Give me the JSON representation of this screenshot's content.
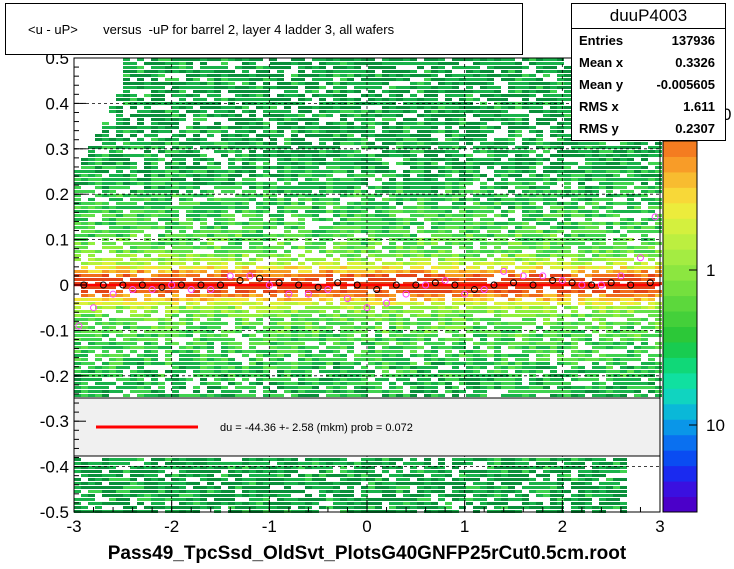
{
  "title": "<u - uP>       versus  -uP for barrel 2, layer 4 ladder 3, all wafers",
  "stats": {
    "name": "duuP4003",
    "rows": [
      {
        "label": "Entries",
        "value": "137936"
      },
      {
        "label": "Mean x",
        "value": "0.3326"
      },
      {
        "label": "Mean y",
        "value": "-0.005605"
      },
      {
        "label": "RMS x",
        "value": "1.611"
      },
      {
        "label": "RMS y",
        "value": "0.2307"
      }
    ]
  },
  "legend": {
    "text": "du =  -44.36 +-  2.58 (mkm) prob = 0.072",
    "line_color": "#ff0000"
  },
  "colors": {
    "fit_line": "#ff0000",
    "profile_black": "#000000",
    "profile_magenta": "#ff44ff"
  },
  "chart_data": {
    "type": "heatmap",
    "xlabel": "Pass49_TpcSsd_OldSvt_PlotsG40GNFP25rCut0.5cm.root",
    "ylabel": "",
    "xlim": [
      -3,
      3
    ],
    "ylim": [
      -0.5,
      0.5
    ],
    "x_ticks": [
      "-3",
      "-2",
      "-1",
      "0",
      "1",
      "2",
      "3"
    ],
    "y_ticks": [
      "-0.5",
      "-0.4",
      "-0.3",
      "-0.2",
      "-0.1",
      "0",
      "0.1",
      "0.2",
      "0.3",
      "0.4",
      "0.5"
    ],
    "z_scale": "log",
    "z_ticks": [
      "1",
      "10"
    ],
    "z_ticks_partial": [
      "0"
    ],
    "grid": true,
    "fit": {
      "slope_per_unit_x": 0.0,
      "intercept": 0.0
    },
    "series": [
      {
        "x": [
          -2.9,
          -2.7,
          -2.5,
          -2.3,
          -2.1,
          -1.9,
          -1.7,
          -1.5,
          -1.3,
          -1.1,
          -0.9,
          -0.7,
          -0.5,
          -0.3,
          -0.1,
          0.1,
          0.3,
          0.5,
          0.7,
          0.9,
          1.1,
          1.3,
          1.5,
          1.7,
          1.9,
          2.1,
          2.3,
          2.5,
          2.7,
          2.9
        ],
        "y": [
          0.0,
          0.0,
          0.0,
          0.0,
          -0.005,
          0.0,
          0.0,
          0.0,
          0.01,
          0.015,
          0.005,
          0.0,
          -0.005,
          0.005,
          0.0,
          -0.01,
          0.0,
          0.0,
          0.005,
          0.0,
          -0.01,
          0.0,
          0.005,
          0.0,
          0.01,
          0.005,
          0.0,
          0.005,
          0.0,
          0.005
        ]
      },
      {
        "x": [
          -2.95,
          -2.8,
          -2.6,
          -2.4,
          -2.2,
          -2.0,
          -1.8,
          -1.6,
          -1.4,
          -1.2,
          -1.0,
          -0.8,
          -0.6,
          -0.4,
          -0.2,
          0.0,
          0.2,
          0.4,
          0.6,
          0.8,
          1.0,
          1.2,
          1.4,
          1.6,
          1.8,
          2.0,
          2.2,
          2.4,
          2.6,
          2.8,
          2.95
        ],
        "y": [
          -0.09,
          -0.05,
          -0.02,
          -0.01,
          -0.01,
          0.0,
          -0.01,
          -0.01,
          0.02,
          0.02,
          0.0,
          -0.02,
          -0.02,
          -0.01,
          -0.03,
          -0.05,
          -0.04,
          -0.02,
          0.0,
          0.01,
          -0.02,
          -0.01,
          0.03,
          0.02,
          0.02,
          0.01,
          0.0,
          0.0,
          0.02,
          0.06,
          0.15
        ]
      }
    ]
  }
}
